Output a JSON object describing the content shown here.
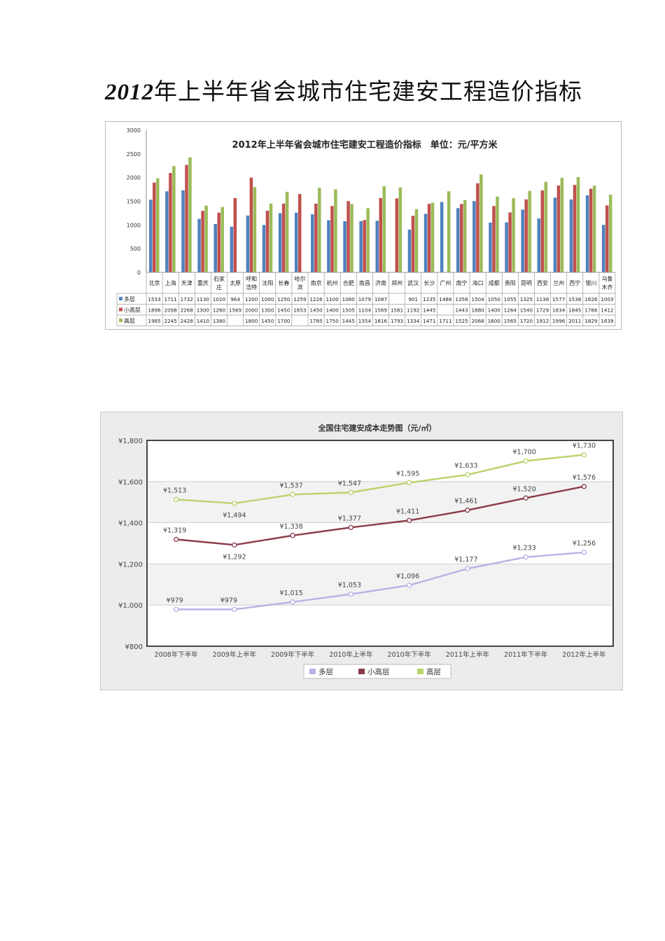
{
  "page": {
    "title_year": "2012",
    "title_rest": "年上半年省会城市住宅建安工程造价指标"
  },
  "chart_data": [
    {
      "type": "bar",
      "title": "2012年上半年省会城市住宅建安工程造价指标　单位：元/平方米",
      "ylim": [
        0,
        3000
      ],
      "yticks": [
        0,
        500,
        1000,
        1500,
        2000,
        2500,
        3000
      ],
      "grid": false,
      "legend": "table-left",
      "categories": [
        [
          "北京"
        ],
        [
          "上海"
        ],
        [
          "天津"
        ],
        [
          "重庆"
        ],
        [
          "石家",
          "庄"
        ],
        [
          "太原"
        ],
        [
          "呼和",
          "浩特"
        ],
        [
          "沈阳"
        ],
        [
          "长春"
        ],
        [
          "哈尔",
          "滨"
        ],
        [
          "南京"
        ],
        [
          "杭州"
        ],
        [
          "合肥"
        ],
        [
          "南昌"
        ],
        [
          "济南"
        ],
        [
          "郑州"
        ],
        [
          "武汉"
        ],
        [
          "长沙"
        ],
        [
          "广州"
        ],
        [
          "南宁"
        ],
        [
          "海口"
        ],
        [
          "成都"
        ],
        [
          "贵阳"
        ],
        [
          "昆明"
        ],
        [
          "西安"
        ],
        [
          "兰州"
        ],
        [
          "西宁"
        ],
        [
          "银川"
        ],
        [
          "乌鲁",
          "木齐"
        ]
      ],
      "series": [
        {
          "name": "多层",
          "color": "#4f81bd",
          "values": [
            1533,
            1711,
            1732,
            1130,
            1020,
            964,
            1200,
            1000,
            1250,
            1259,
            1226,
            1100,
            1080,
            1079,
            1087,
            null,
            901,
            1235,
            1486,
            1356,
            1504,
            1050,
            1055,
            1325,
            1138,
            1577,
            1538,
            1626,
            1003
          ]
        },
        {
          "name": "小高层",
          "color": "#c0504d",
          "values": [
            1896,
            2098,
            2268,
            1300,
            1260,
            1569,
            2000,
            1300,
            1450,
            1653,
            1450,
            1400,
            1505,
            1104,
            1569,
            1561,
            1192,
            1445,
            null,
            1443,
            1880,
            1400,
            1264,
            1540,
            1729,
            1834,
            1845,
            1766,
            1412
          ]
        },
        {
          "name": "高层",
          "color": "#9bbb59",
          "values": [
            1985,
            2245,
            2428,
            1410,
            1380,
            null,
            1800,
            1450,
            1700,
            null,
            1785,
            1750,
            1445,
            1354,
            1816,
            1793,
            1334,
            1471,
            1711,
            1525,
            2068,
            1600,
            1565,
            1720,
            1912,
            1996,
            2011,
            1829,
            1639
          ]
        }
      ]
    },
    {
      "type": "line",
      "title": "全国住宅建安成本走势图（元/㎡）",
      "ylim": [
        800,
        1800
      ],
      "yticks": [
        "¥800",
        "¥1,000",
        "¥1,200",
        "¥1,400",
        "¥1,600",
        "¥1,800"
      ],
      "legend": "bottom",
      "categories": [
        "2008年下半年",
        "2009年上半年",
        "2009年下半年",
        "2010年上半年",
        "2010年下半年",
        "2011年上半年",
        "2011年下半年",
        "2012年上半年"
      ],
      "series": [
        {
          "name": "多层",
          "color": "#b4b4e6",
          "values": [
            979,
            979,
            1015,
            1053,
            1096,
            1177,
            1233,
            1256
          ],
          "labels": [
            "¥979",
            "¥979",
            "¥1,015",
            "¥1,053",
            "¥1,096",
            "¥1,177",
            "¥1,233",
            "¥1,256"
          ]
        },
        {
          "name": "小高层",
          "color": "#8b3a4a",
          "values": [
            1319,
            1292,
            1338,
            1377,
            1411,
            1461,
            1520,
            1576
          ],
          "labels": [
            "¥1,319",
            "¥1,292",
            "¥1,338",
            "¥1,377",
            "¥1,411",
            "¥1,461",
            "¥1,520",
            "¥1,576"
          ]
        },
        {
          "name": "高层",
          "color": "#b9d36c",
          "values": [
            1513,
            1494,
            1537,
            1547,
            1595,
            1633,
            1700,
            1730
          ],
          "labels": [
            "¥1,513",
            "¥1,494",
            "¥1,537",
            "¥1,547",
            "¥1,595",
            "¥1,633",
            "¥1,700",
            "¥1,730"
          ]
        }
      ]
    }
  ]
}
